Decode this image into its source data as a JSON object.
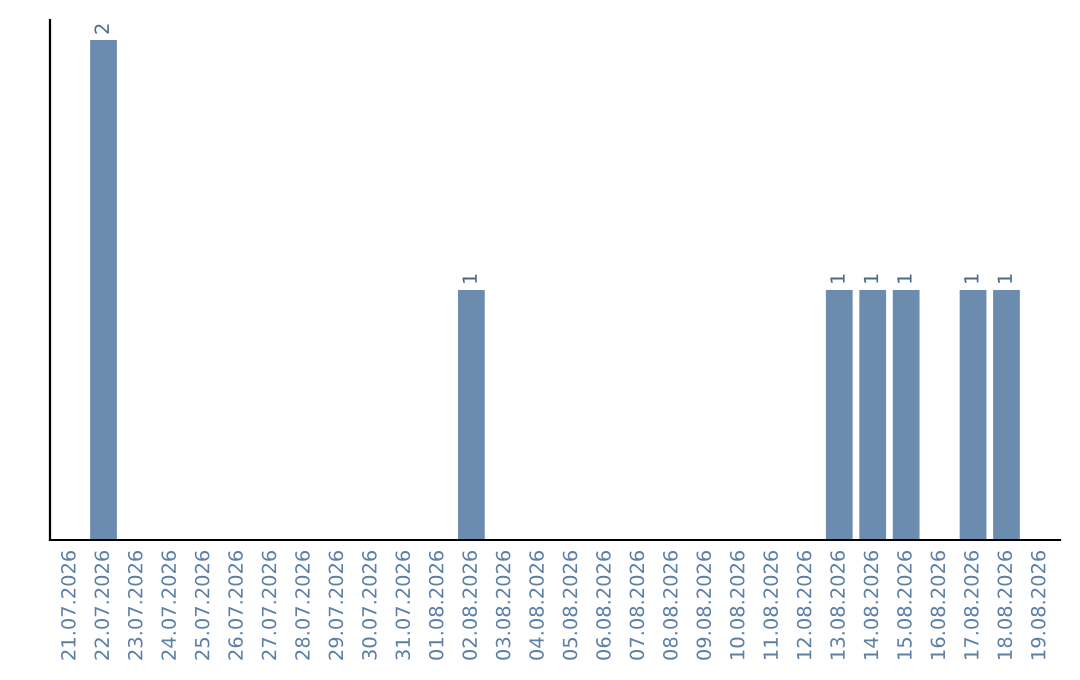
{
  "chart_data": {
    "type": "bar",
    "categories": [
      "21.07.2026",
      "22.07.2026",
      "23.07.2026",
      "24.07.2026",
      "25.07.2026",
      "26.07.2026",
      "27.07.2026",
      "28.07.2026",
      "29.07.2026",
      "30.07.2026",
      "31.07.2026",
      "01.08.2026",
      "02.08.2026",
      "03.08.2026",
      "04.08.2026",
      "05.08.2026",
      "06.08.2026",
      "07.08.2026",
      "08.08.2026",
      "09.08.2026",
      "10.08.2026",
      "11.08.2026",
      "12.08.2026",
      "13.08.2026",
      "14.08.2026",
      "15.08.2026",
      "16.08.2026",
      "17.08.2026",
      "18.08.2026",
      "19.08.2026"
    ],
    "values": [
      0,
      2,
      0,
      0,
      0,
      0,
      0,
      0,
      0,
      0,
      0,
      0,
      1,
      0,
      0,
      0,
      0,
      0,
      0,
      0,
      0,
      0,
      0,
      1,
      1,
      1,
      0,
      1,
      1,
      0
    ],
    "value_labels": [
      null,
      "2",
      null,
      null,
      null,
      null,
      null,
      null,
      null,
      null,
      null,
      null,
      "1",
      null,
      null,
      null,
      null,
      null,
      null,
      null,
      null,
      null,
      null,
      "1",
      "1",
      "1",
      null,
      "1",
      "1",
      null
    ],
    "color": "#6b8cae",
    "ylim": [
      0,
      2.08
    ],
    "grid": false,
    "legend": false,
    "tick_labels": "x"
  }
}
